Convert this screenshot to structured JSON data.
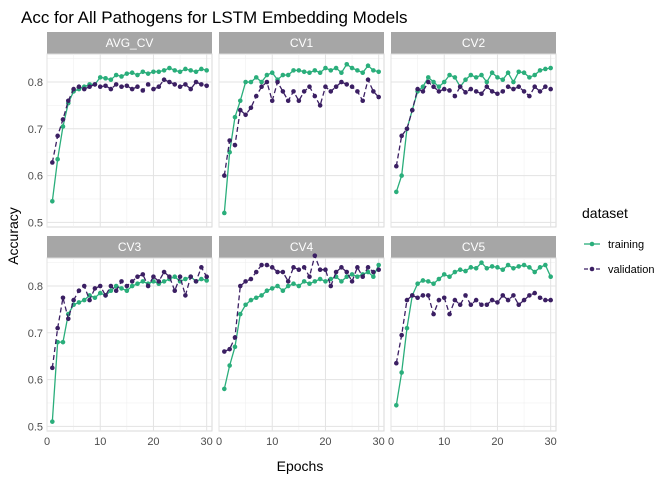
{
  "chart_data": {
    "type": "line",
    "title": "Acc for All Pathogens for LSTM Embedding Models",
    "xlabel": "Epochs",
    "ylabel": "Accuracy",
    "xlim": [
      0,
      31
    ],
    "ylim": [
      0.49,
      0.86
    ],
    "x_ticks": [
      0,
      10,
      20,
      30
    ],
    "y_ticks": [
      0.5,
      0.6,
      0.7,
      0.8
    ],
    "grid": true,
    "legend": {
      "title": "dataset",
      "position": "right",
      "entries": [
        {
          "name": "training",
          "color": "#2aae7b",
          "style": "solid"
        },
        {
          "name": "validation",
          "color": "#3b1f63",
          "style": "dashed"
        }
      ]
    },
    "epochs": [
      1,
      2,
      3,
      4,
      5,
      6,
      7,
      8,
      9,
      10,
      11,
      12,
      13,
      14,
      15,
      16,
      17,
      18,
      19,
      20,
      21,
      22,
      23,
      24,
      25,
      26,
      27,
      28,
      29,
      30
    ],
    "panels": [
      {
        "name": "AVG_CV",
        "training": [
          0.545,
          0.635,
          0.705,
          0.755,
          0.78,
          0.785,
          0.79,
          0.795,
          0.795,
          0.81,
          0.808,
          0.805,
          0.815,
          0.812,
          0.818,
          0.82,
          0.815,
          0.822,
          0.818,
          0.822,
          0.822,
          0.825,
          0.83,
          0.825,
          0.822,
          0.828,
          0.825,
          0.822,
          0.828,
          0.825
        ],
        "validation": [
          0.628,
          0.685,
          0.72,
          0.76,
          0.785,
          0.79,
          0.785,
          0.79,
          0.795,
          0.79,
          0.792,
          0.785,
          0.795,
          0.79,
          0.792,
          0.785,
          0.79,
          0.782,
          0.795,
          0.785,
          0.79,
          0.805,
          0.8,
          0.795,
          0.79,
          0.795,
          0.785,
          0.8,
          0.795,
          0.792
        ]
      },
      {
        "name": "CV1",
        "training": [
          0.52,
          0.65,
          0.725,
          0.76,
          0.8,
          0.8,
          0.81,
          0.8,
          0.815,
          0.82,
          0.805,
          0.815,
          0.815,
          0.825,
          0.825,
          0.822,
          0.82,
          0.825,
          0.82,
          0.83,
          0.825,
          0.83,
          0.82,
          0.838,
          0.83,
          0.825,
          0.82,
          0.835,
          0.825,
          0.822
        ],
        "validation": [
          0.6,
          0.675,
          0.665,
          0.74,
          0.73,
          0.745,
          0.77,
          0.79,
          0.8,
          0.76,
          0.8,
          0.78,
          0.76,
          0.78,
          0.76,
          0.78,
          0.79,
          0.77,
          0.75,
          0.79,
          0.78,
          0.79,
          0.8,
          0.795,
          0.79,
          0.78,
          0.76,
          0.805,
          0.78,
          0.768
        ]
      },
      {
        "name": "CV2",
        "training": [
          0.565,
          0.6,
          0.7,
          0.74,
          0.78,
          0.79,
          0.81,
          0.8,
          0.79,
          0.8,
          0.815,
          0.81,
          0.79,
          0.805,
          0.815,
          0.81,
          0.815,
          0.8,
          0.82,
          0.81,
          0.805,
          0.82,
          0.8,
          0.822,
          0.82,
          0.81,
          0.815,
          0.825,
          0.828,
          0.83
        ],
        "validation": [
          0.62,
          0.685,
          0.7,
          0.74,
          0.785,
          0.78,
          0.8,
          0.79,
          0.78,
          0.785,
          0.782,
          0.77,
          0.79,
          0.778,
          0.785,
          0.78,
          0.775,
          0.79,
          0.78,
          0.775,
          0.78,
          0.79,
          0.785,
          0.79,
          0.78,
          0.77,
          0.79,
          0.78,
          0.79,
          0.785
        ]
      },
      {
        "name": "CV3",
        "training": [
          0.51,
          0.68,
          0.68,
          0.74,
          0.76,
          0.765,
          0.77,
          0.78,
          0.775,
          0.785,
          0.78,
          0.79,
          0.8,
          0.795,
          0.79,
          0.8,
          0.805,
          0.81,
          0.805,
          0.81,
          0.805,
          0.81,
          0.815,
          0.82,
          0.81,
          0.815,
          0.82,
          0.81,
          0.815,
          0.812
        ],
        "validation": [
          0.625,
          0.71,
          0.775,
          0.73,
          0.77,
          0.79,
          0.8,
          0.77,
          0.795,
          0.8,
          0.78,
          0.8,
          0.79,
          0.81,
          0.8,
          0.81,
          0.82,
          0.825,
          0.8,
          0.82,
          0.81,
          0.83,
          0.82,
          0.79,
          0.82,
          0.78,
          0.82,
          0.81,
          0.84,
          0.82
        ]
      },
      {
        "name": "CV4",
        "training": [
          0.58,
          0.63,
          0.67,
          0.74,
          0.76,
          0.77,
          0.775,
          0.78,
          0.79,
          0.795,
          0.8,
          0.79,
          0.8,
          0.805,
          0.8,
          0.81,
          0.805,
          0.81,
          0.815,
          0.81,
          0.815,
          0.82,
          0.81,
          0.82,
          0.825,
          0.82,
          0.825,
          0.83,
          0.82,
          0.845
        ],
        "validation": [
          0.66,
          0.665,
          0.69,
          0.8,
          0.81,
          0.815,
          0.83,
          0.845,
          0.845,
          0.84,
          0.83,
          0.83,
          0.81,
          0.84,
          0.835,
          0.84,
          0.82,
          0.865,
          0.835,
          0.835,
          0.8,
          0.83,
          0.84,
          0.83,
          0.81,
          0.84,
          0.82,
          0.84,
          0.83,
          0.835
        ]
      },
      {
        "name": "CV5",
        "training": [
          0.545,
          0.615,
          0.71,
          0.78,
          0.805,
          0.812,
          0.81,
          0.805,
          0.815,
          0.825,
          0.82,
          0.83,
          0.835,
          0.832,
          0.84,
          0.838,
          0.85,
          0.838,
          0.842,
          0.84,
          0.835,
          0.845,
          0.838,
          0.842,
          0.845,
          0.84,
          0.83,
          0.84,
          0.845,
          0.82
        ],
        "validation": [
          0.635,
          0.695,
          0.77,
          0.78,
          0.775,
          0.78,
          0.78,
          0.74,
          0.77,
          0.775,
          0.74,
          0.77,
          0.76,
          0.78,
          0.76,
          0.77,
          0.76,
          0.76,
          0.77,
          0.765,
          0.78,
          0.77,
          0.78,
          0.76,
          0.77,
          0.78,
          0.785,
          0.775,
          0.77,
          0.77
        ]
      }
    ]
  }
}
